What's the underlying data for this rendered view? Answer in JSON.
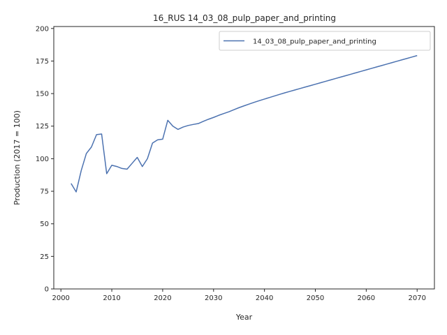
{
  "chart_data": {
    "type": "line",
    "title": "16_RUS 14_03_08_pulp_paper_and_printing",
    "xlabel": "Year",
    "ylabel": "Production (2017 = 100)",
    "xlim": [
      1998.6,
      2073.4
    ],
    "ylim": [
      0,
      201.5
    ],
    "xticks": [
      2000,
      2010,
      2020,
      2030,
      2040,
      2050,
      2060,
      2070
    ],
    "yticks": [
      0,
      25,
      50,
      75,
      100,
      125,
      150,
      175,
      200
    ],
    "grid": false,
    "legend_position": "top-right",
    "series": [
      {
        "name": "14_03_08_pulp_paper_and_printing",
        "color": "#4c72b0",
        "x": [
          2002,
          2003,
          2004,
          2005,
          2006,
          2007,
          2008,
          2009,
          2010,
          2011,
          2012,
          2013,
          2014,
          2015,
          2016,
          2017,
          2018,
          2019,
          2020,
          2021,
          2022,
          2023,
          2024,
          2025,
          2026,
          2027,
          2028,
          2029,
          2030,
          2031,
          2032,
          2033,
          2034,
          2035,
          2036,
          2037,
          2038,
          2039,
          2040,
          2041,
          2042,
          2043,
          2044,
          2045,
          2046,
          2047,
          2048,
          2049,
          2050,
          2051,
          2052,
          2053,
          2054,
          2055,
          2056,
          2057,
          2058,
          2059,
          2060,
          2061,
          2062,
          2063,
          2064,
          2065,
          2066,
          2067,
          2068,
          2069,
          2070
        ],
        "values": [
          81,
          74.5,
          91,
          104,
          109,
          118.5,
          119,
          88.5,
          95,
          94,
          92.5,
          92,
          96.5,
          101,
          94,
          100,
          112,
          114.5,
          115,
          129.5,
          125,
          122.5,
          124.3,
          125.5,
          126.3,
          127,
          128.7,
          130.3,
          131.7,
          133.3,
          134.7,
          136,
          137.6,
          139.2,
          140.6,
          142,
          143.3,
          144.6,
          145.8,
          147,
          148.2,
          149.4,
          150.6,
          151.7,
          152.8,
          153.9,
          155,
          156.1,
          157.2,
          158.3,
          159.4,
          160.5,
          161.6,
          162.7,
          163.8,
          164.9,
          166,
          167.1,
          168.2,
          169.3,
          170.4,
          171.5,
          172.6,
          173.7,
          174.8,
          175.9,
          177,
          178.1,
          179.2
        ]
      }
    ]
  }
}
